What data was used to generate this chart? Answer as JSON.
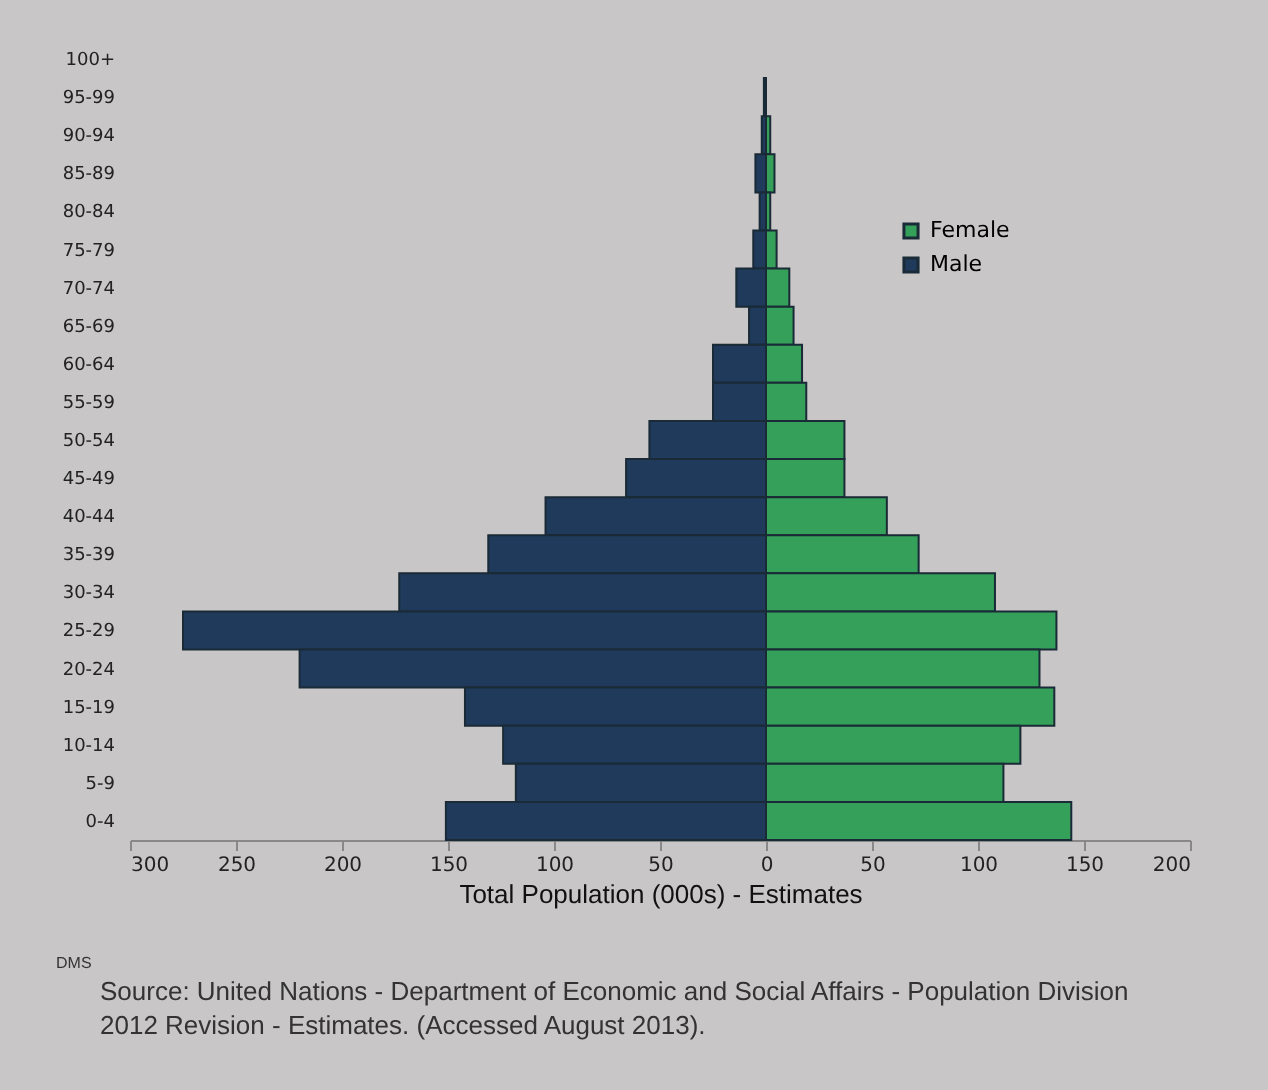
{
  "chart_data": {
    "type": "bar",
    "orientation": "horizontal",
    "stacked": true,
    "categories": [
      "100+",
      "95-99",
      "90-94",
      "85-89",
      "80-84",
      "75-79",
      "70-74",
      "65-69",
      "60-64",
      "55-59",
      "50-54",
      "45-49",
      "40-44",
      "35-39",
      "30-34",
      "25-29",
      "20-24",
      "15-19",
      "10-14",
      "5-9",
      "0-4"
    ],
    "series": [
      {
        "name": "Female",
        "color": "#34a05a",
        "values": [
          null,
          null,
          2,
          4,
          2,
          5,
          11,
          13,
          17,
          19,
          37,
          37,
          57,
          72,
          108,
          137,
          129,
          136,
          120,
          112,
          144
        ]
      },
      {
        "name": "Male",
        "color": "#1f3a5a",
        "values": [
          null,
          -1,
          -2,
          -5,
          -3,
          -6,
          -14,
          -8,
          -25,
          -25,
          -55,
          -66,
          -104,
          -131,
          -173,
          -275,
          -220,
          -142,
          -124,
          -118,
          -151
        ]
      }
    ],
    "xlim": [
      -300,
      200
    ],
    "xticks": [
      {
        "value": -300,
        "label": "300"
      },
      {
        "value": -250,
        "label": "250"
      },
      {
        "value": -200,
        "label": "200"
      },
      {
        "value": -150,
        "label": "150"
      },
      {
        "value": -100,
        "label": "100"
      },
      {
        "value": -50,
        "label": "50"
      },
      0,
      50,
      100,
      150,
      200
    ],
    "xlabel": "Total Population (000s) - Estimates",
    "legend": "top right",
    "grid": false,
    "annotations": [
      "DMS",
      "Source: United Nations - Department of Economic and Social Affairs - Population Division",
      "2012 Revision - Estimates. (Accessed August 2013)."
    ]
  }
}
